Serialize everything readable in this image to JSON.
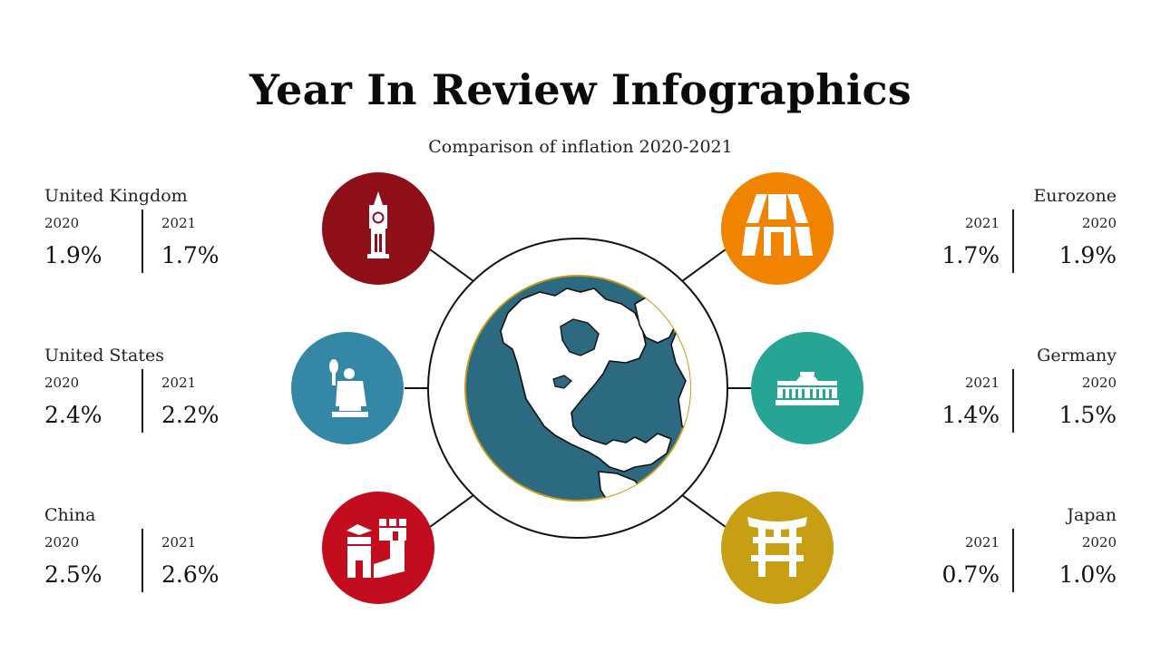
{
  "title": "Year In Review Infographics",
  "subtitle": "Comparison of inflation 2020-2021",
  "colors": {
    "uk": "#8e0f18",
    "us": "#3587a6",
    "china": "#c30c1d",
    "eurozone": "#f08300",
    "germany": "#26a595",
    "japan": "#c89f12",
    "globe_ocean": "#2b6a80",
    "globe_ring": "#c99a1a"
  },
  "countries": {
    "uk": {
      "name": "United Kingdom",
      "year_a": "2020",
      "value_a": "1.9%",
      "year_b": "2021",
      "value_b": "1.7%",
      "icon": "big-ben-icon"
    },
    "us": {
      "name": "United States",
      "year_a": "2020",
      "value_a": "2.4%",
      "year_b": "2021",
      "value_b": "2.2%",
      "icon": "statue-of-liberty-icon"
    },
    "china": {
      "name": "China",
      "year_a": "2020",
      "value_a": "2.5%",
      "year_b": "2021",
      "value_b": "2.6%",
      "icon": "great-wall-icon"
    },
    "eurozone": {
      "name": "Eurozone",
      "year_a": "2021",
      "value_a": "1.7%",
      "year_b": "2020",
      "value_b": "1.9%",
      "icon": "eiffel-tower-icon"
    },
    "germany": {
      "name": "Germany",
      "year_a": "2021",
      "value_a": "1.4%",
      "year_b": "2020",
      "value_b": "1.5%",
      "icon": "reichstag-icon"
    },
    "japan": {
      "name": "Japan",
      "year_a": "2021",
      "value_a": "0.7%",
      "year_b": "2020",
      "value_b": "1.0%",
      "icon": "torii-gate-icon"
    }
  }
}
